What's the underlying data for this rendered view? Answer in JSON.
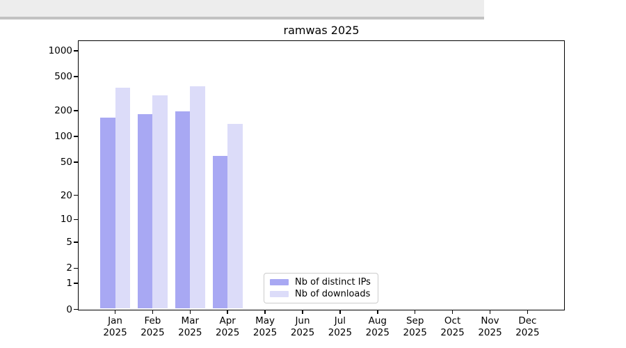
{
  "chart_data": {
    "type": "bar",
    "title": "ramwas 2025",
    "categories": [
      "Jan",
      "Feb",
      "Mar",
      "Apr",
      "May",
      "Jun",
      "Jul",
      "Aug",
      "Sep",
      "Oct",
      "Nov",
      "Dec"
    ],
    "category_year": "2025",
    "series": [
      {
        "name": "Nb of distinct IPs",
        "color": "#a8a8f3",
        "values": [
          167,
          183,
          195,
          59,
          0,
          0,
          0,
          0,
          0,
          0,
          0,
          0
        ]
      },
      {
        "name": "Nb of downloads",
        "color": "#dcdcf9",
        "values": [
          370,
          305,
          384,
          141,
          0,
          0,
          0,
          0,
          0,
          0,
          0,
          0
        ]
      }
    ],
    "y_axis": {
      "scale": "log10(value+1)",
      "tick_labels": [
        "1000",
        "500",
        "200",
        "100",
        "50",
        "20",
        "10",
        "5",
        "2",
        "1",
        "0"
      ],
      "tick_values": [
        1000,
        500,
        200,
        100,
        50,
        20,
        10,
        5,
        2,
        1,
        0
      ],
      "range": [
        0,
        1100
      ]
    },
    "grid": {
      "orientation": "horizontal",
      "major_values": [
        1,
        10,
        100,
        1000
      ],
      "minor_rule": "2-9 per decade"
    },
    "legend_position": "inside-bottom-center"
  },
  "colors": {
    "background": "#ffffff",
    "spine": "#000000",
    "major_grid": "#bbbbbb",
    "minor_grid": "#ededed",
    "text": "#000000",
    "legend_border": "#cccccc"
  }
}
